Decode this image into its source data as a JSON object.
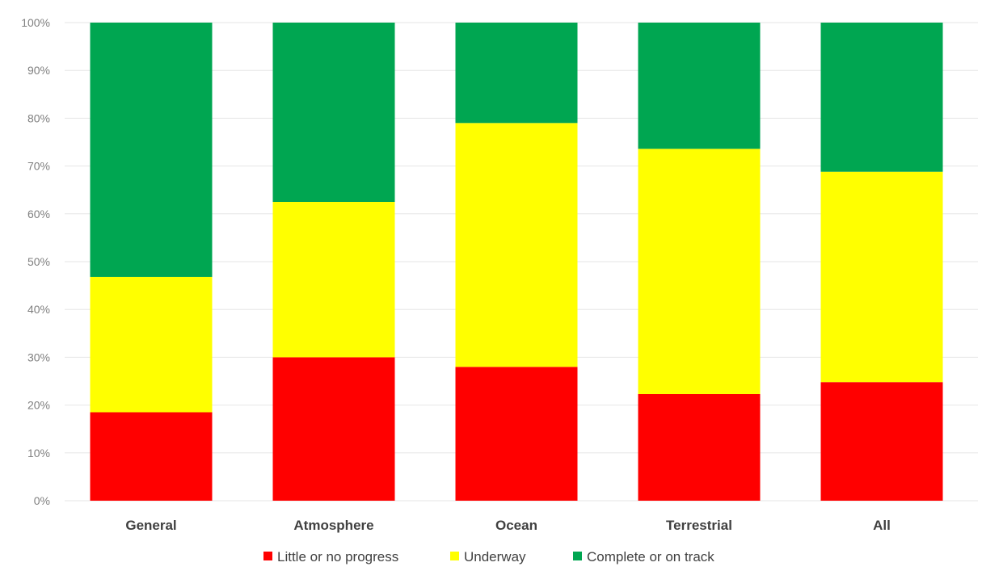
{
  "chart_data": {
    "type": "bar",
    "stacked": true,
    "categories": [
      "General",
      "Atmosphere",
      "Ocean",
      "Terrestrial",
      "All"
    ],
    "series": [
      {
        "name": "Little or no progress",
        "color": "#ff0000",
        "values": [
          18.5,
          30,
          28,
          22.3,
          24.8
        ]
      },
      {
        "name": "Underway",
        "color": "#ffff00",
        "values": [
          28.3,
          32.5,
          51,
          51.3,
          44
        ]
      },
      {
        "name": "Complete or on track",
        "color": "#00a651",
        "values": [
          53.2,
          37.5,
          21,
          26.4,
          31.2
        ]
      }
    ],
    "y_ticks": [
      "0%",
      "10%",
      "20%",
      "30%",
      "40%",
      "50%",
      "60%",
      "70%",
      "80%",
      "90%",
      "100%"
    ],
    "ylim": [
      0,
      100
    ],
    "y_unit": "%",
    "grid": true,
    "legend_position": "bottom",
    "title": "",
    "xlabel": "",
    "ylabel": ""
  }
}
